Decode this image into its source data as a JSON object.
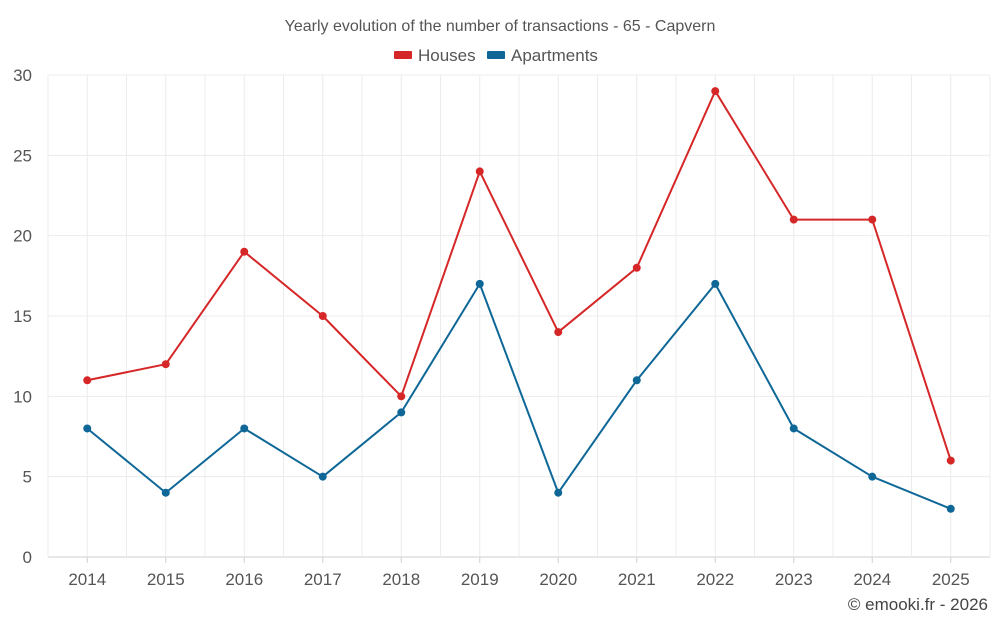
{
  "chart_data": {
    "type": "line",
    "title": "Yearly evolution of the number of transactions - 65 - Capvern",
    "categories": [
      "2014",
      "2015",
      "2016",
      "2017",
      "2018",
      "2019",
      "2020",
      "2021",
      "2022",
      "2023",
      "2024",
      "2025"
    ],
    "series": [
      {
        "name": "Houses",
        "color": "#d62728",
        "values": [
          11,
          12,
          19,
          15,
          10,
          24,
          14,
          18,
          29,
          21,
          21,
          6
        ]
      },
      {
        "name": "Apartments",
        "color": "#0e6797",
        "values": [
          8,
          4,
          8,
          5,
          9,
          17,
          4,
          11,
          17,
          8,
          5,
          3
        ]
      }
    ],
    "ylim": [
      0,
      30
    ],
    "yticks": [
      0,
      5,
      10,
      15,
      20,
      25,
      30
    ],
    "xlabel": "",
    "ylabel": "",
    "grid": true,
    "legend": "top-center"
  },
  "credit": "© emooki.fr - 2026"
}
